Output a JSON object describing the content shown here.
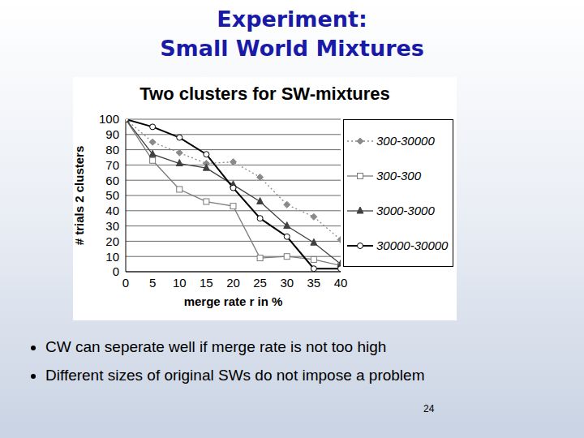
{
  "slide": {
    "title": [
      "Experiment:",
      "Small World Mixtures"
    ],
    "bullets": [
      "CW can seperate well if merge rate is not too high",
      "Different sizes of original SWs do not impose a problem"
    ],
    "page": 24
  },
  "chart_data": {
    "type": "line",
    "title": "Two clusters for SW-mixtures",
    "x_label": "merge rate r in %",
    "y_label": "# trials 2 clusters",
    "x": [
      0,
      5,
      10,
      15,
      20,
      25,
      30,
      35,
      40
    ],
    "xlim": [
      0,
      40
    ],
    "xticks": [
      0,
      5,
      10,
      15,
      20,
      25,
      30,
      35,
      40
    ],
    "ylim": [
      0,
      100
    ],
    "yticks": [
      0,
      10,
      20,
      30,
      40,
      50,
      60,
      70,
      80,
      90,
      100
    ],
    "grid": true,
    "legend": "right",
    "series": [
      {
        "name": "300-30000",
        "color": "#8a8a8a",
        "marker": "diamond",
        "line_style": "dotted",
        "values": [
          100,
          85,
          78,
          71,
          72,
          62,
          44,
          36,
          21
        ]
      },
      {
        "name": "300-300",
        "color": "#7a7a7a",
        "marker": "open-square",
        "line_style": "solid",
        "values": [
          100,
          73,
          54,
          46,
          43,
          9,
          10,
          8,
          4
        ]
      },
      {
        "name": "3000-3000",
        "color": "#404040",
        "marker": "triangle",
        "line_style": "solid",
        "values": [
          100,
          77,
          71,
          68,
          57,
          46,
          30,
          19,
          5
        ]
      },
      {
        "name": "30000-30000",
        "color": "#000000",
        "marker": "open-circle",
        "line_style": "solid",
        "values": [
          100,
          95,
          88,
          77,
          55,
          35,
          23,
          2,
          2
        ]
      }
    ]
  }
}
